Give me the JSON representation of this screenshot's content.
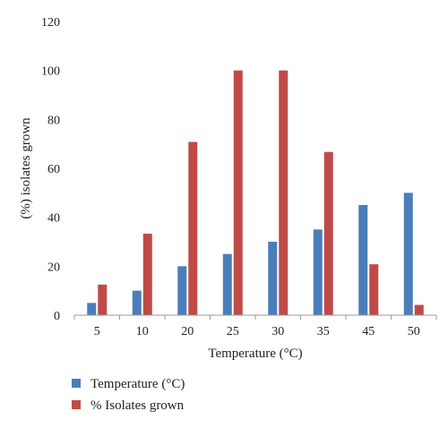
{
  "chart_data": {
    "type": "bar",
    "categories": [
      "5",
      "10",
      "20",
      "25",
      "30",
      "35",
      "45",
      "50"
    ],
    "series": [
      {
        "name": "Temperature (°C)",
        "color": "#4a7ebb",
        "values": [
          5,
          10,
          20,
          25,
          30,
          35,
          45,
          50
        ]
      },
      {
        "name": "% Isolates grown",
        "color": "#be4b48",
        "values": [
          12.5,
          33.3,
          70.8,
          100,
          100,
          66.7,
          20.8,
          4.2
        ]
      }
    ],
    "title": "",
    "xlabel": "Temperature (°C)",
    "ylabel": "(%) isolates grown",
    "ylim": [
      0,
      120
    ],
    "yticks": [
      "0",
      "20",
      "40",
      "60",
      "80",
      "100",
      "120"
    ],
    "grid": false,
    "legend_position": "bottom-left"
  }
}
